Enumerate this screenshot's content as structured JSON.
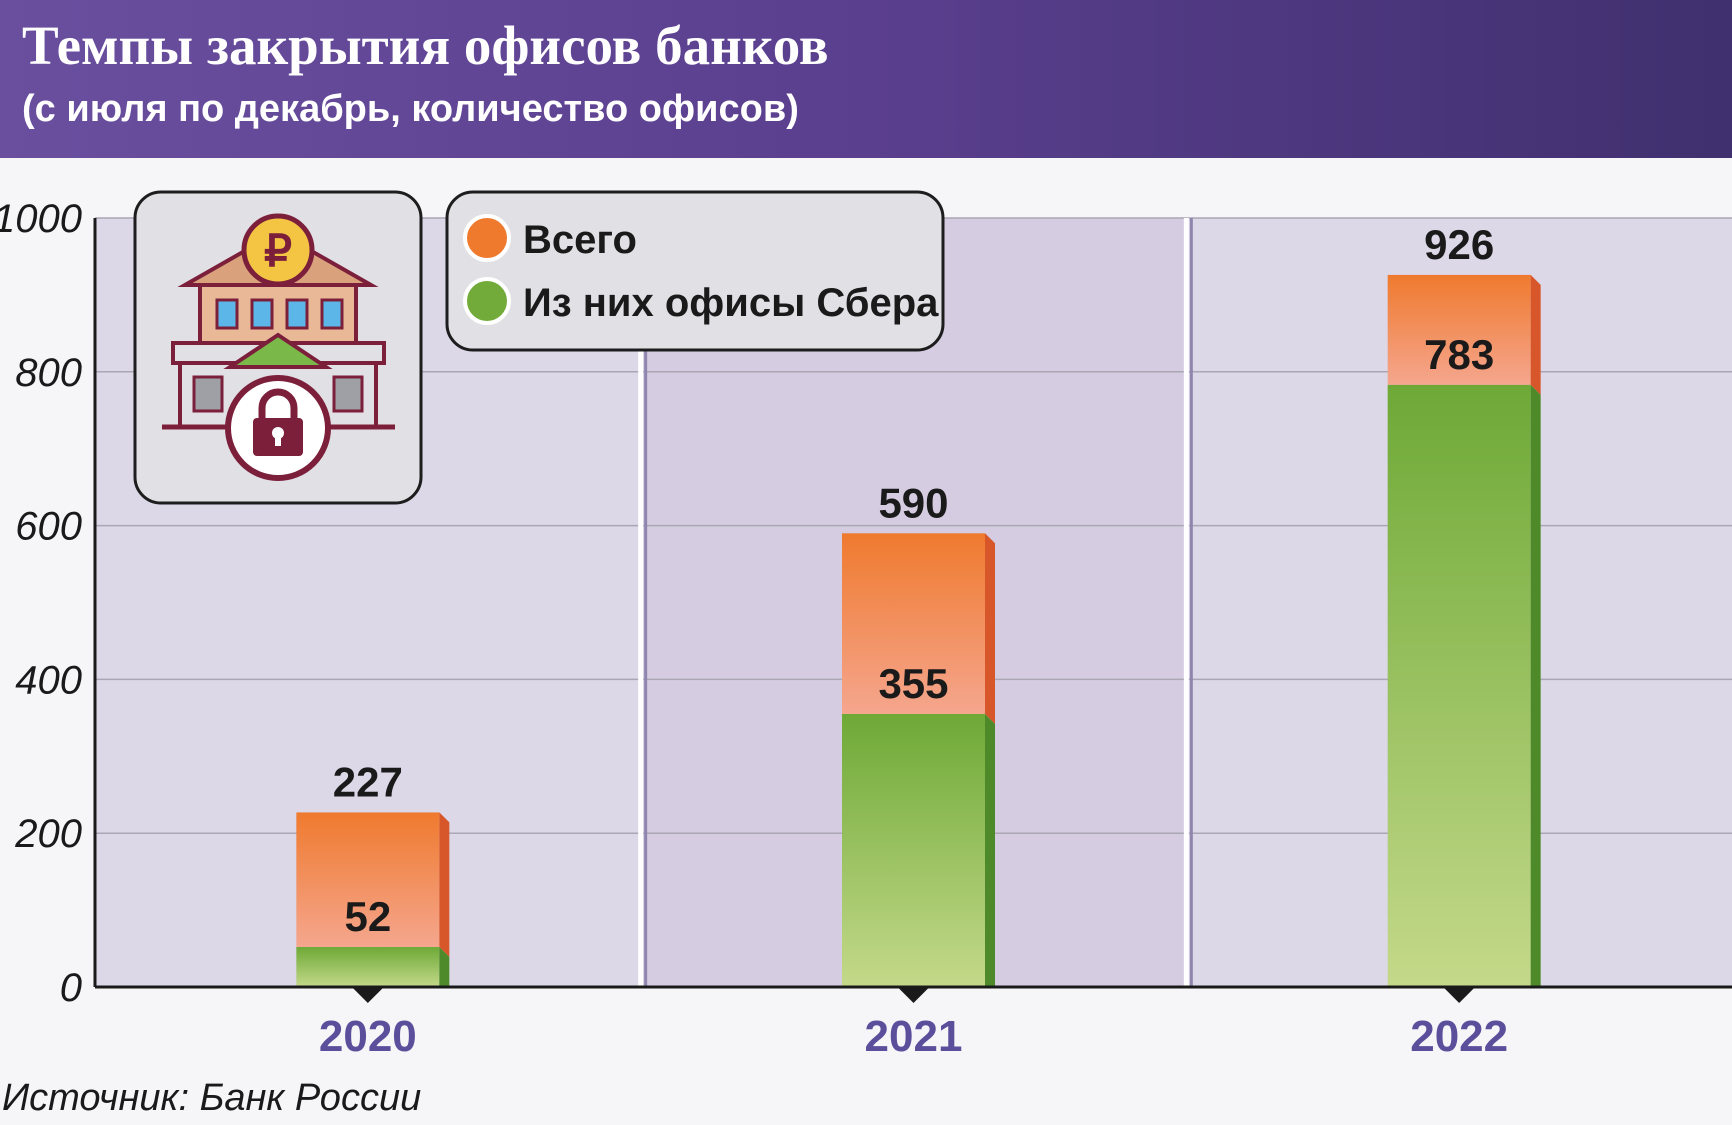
{
  "header": {
    "title": "Темпы закрытия офисов банков",
    "subtitle": "(с июля по декабрь, количество офисов)"
  },
  "source": "Источник: Банк России",
  "colors": {
    "total": "#ef7a2e",
    "sber": "#72ab3a",
    "plot_background": "#dcd6e6",
    "year_label": "#5b4f9c",
    "header": "#5a3f8e"
  },
  "icons": [
    "bank-building-icon",
    "ruble-icon",
    "padlock-icon"
  ],
  "chart_data": {
    "type": "bar",
    "categories": [
      "2020",
      "2021",
      "2022"
    ],
    "series": [
      {
        "name": "Всего",
        "values": [
          227,
          590,
          926
        ]
      },
      {
        "name": "Из них офисы Сбера",
        "values": [
          52,
          355,
          783
        ]
      }
    ],
    "ylim": [
      0,
      1000
    ],
    "yticks": [
      "0",
      "200",
      "400",
      "600",
      "800",
      "1000"
    ],
    "grid": true,
    "legend_position": "top-left"
  }
}
